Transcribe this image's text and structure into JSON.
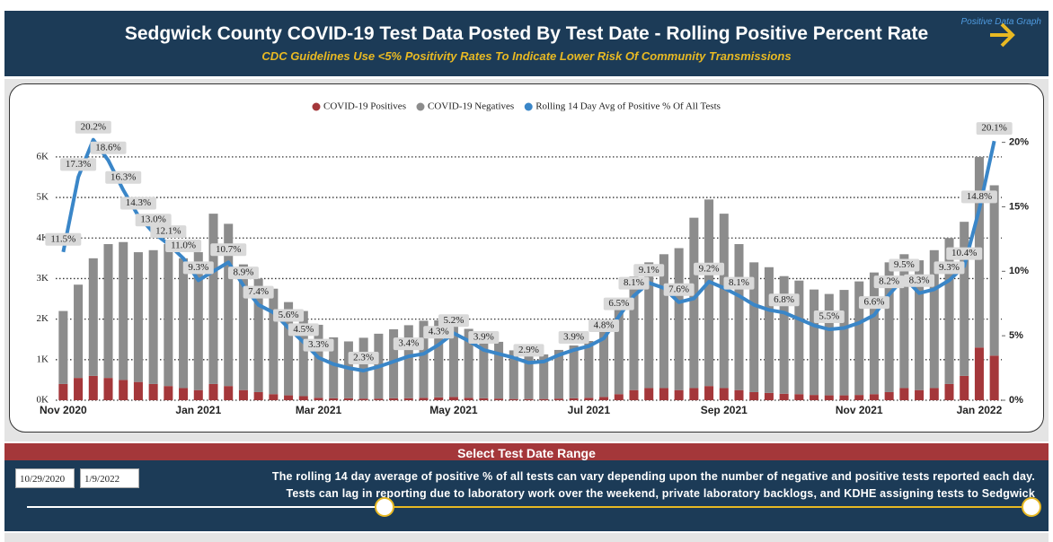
{
  "header": {
    "link": "Positive Data Graph",
    "title": "Sedgwick County COVID-19 Test Data Posted By Test Date - Rolling Positive Percent Rate",
    "subtitle": "CDC Guidelines Use <5% Positivity Rates To Indicate Lower Risk Of Community Transmissions"
  },
  "chart_data": {
    "type": "bar",
    "stacked": true,
    "grid": true,
    "legend": "top",
    "categories": [
      "Nov 2020",
      null,
      null,
      null,
      null,
      null,
      null,
      null,
      null,
      "Jan 2021",
      null,
      null,
      null,
      null,
      null,
      null,
      null,
      "Mar 2021",
      null,
      null,
      null,
      null,
      null,
      null,
      null,
      null,
      "May 2021",
      null,
      null,
      null,
      null,
      null,
      null,
      null,
      null,
      "Jul 2021",
      null,
      null,
      null,
      null,
      null,
      null,
      null,
      null,
      "Sep 2021",
      null,
      null,
      null,
      null,
      null,
      null,
      null,
      null,
      "Nov 2021",
      null,
      null,
      null,
      null,
      null,
      null,
      null,
      "Jan 2022",
      null
    ],
    "series": [
      {
        "name": "COVID-19 Positives",
        "color": "#a4373a",
        "type": "bar",
        "values": [
          400,
          550,
          600,
          550,
          500,
          450,
          400,
          350,
          300,
          250,
          400,
          350,
          250,
          200,
          150,
          120,
          100,
          60,
          50,
          50,
          40,
          40,
          50,
          50,
          60,
          70,
          80,
          60,
          50,
          40,
          30,
          30,
          30,
          40,
          50,
          60,
          80,
          150,
          250,
          300,
          300,
          250,
          300,
          350,
          300,
          250,
          200,
          180,
          160,
          150,
          130,
          120,
          120,
          130,
          150,
          200,
          300,
          250,
          300,
          400,
          600,
          1300,
          1100
        ]
      },
      {
        "name": "COVID-19 Negatives",
        "color": "#8c8c8c",
        "type": "bar",
        "values": [
          1800,
          2300,
          2900,
          3300,
          3400,
          3200,
          3300,
          3500,
          3200,
          3400,
          4200,
          4000,
          3100,
          2800,
          2600,
          2300,
          2100,
          1800,
          1500,
          1400,
          1500,
          1600,
          1700,
          1800,
          1900,
          1900,
          1950,
          1700,
          1600,
          1400,
          1200,
          1100,
          1100,
          1200,
          1300,
          1400,
          1700,
          2100,
          2800,
          3100,
          3300,
          3500,
          4200,
          4600,
          4300,
          3600,
          3200,
          3100,
          2900,
          2800,
          2600,
          2500,
          2600,
          2800,
          3000,
          3200,
          3300,
          3200,
          3400,
          3600,
          3800,
          4700,
          4200
        ]
      },
      {
        "name": "Rolling 14 Day Avg of Positive % Of All Tests",
        "color": "#3a86c8",
        "type": "line",
        "axis": "y2",
        "values": [
          11.5,
          17.3,
          20.2,
          18.6,
          16.3,
          14.3,
          13.0,
          12.1,
          11.0,
          9.3,
          10.0,
          10.7,
          8.9,
          7.4,
          6.8,
          5.6,
          4.5,
          3.3,
          2.8,
          2.5,
          2.3,
          2.6,
          3.0,
          3.4,
          3.6,
          4.3,
          5.2,
          4.6,
          3.9,
          3.6,
          3.3,
          2.9,
          3.0,
          3.5,
          3.9,
          4.2,
          4.8,
          6.5,
          8.1,
          9.1,
          8.7,
          7.6,
          7.9,
          9.2,
          8.7,
          8.1,
          7.4,
          7.0,
          6.8,
          6.3,
          5.8,
          5.5,
          5.6,
          6.0,
          6.6,
          8.2,
          9.5,
          8.3,
          8.6,
          9.3,
          10.4,
          14.8,
          20.1
        ],
        "value_labels": [
          "11.5%",
          "17.3%",
          "20.2%",
          "18.6%",
          "16.3%",
          "14.3%",
          "13.0%",
          "12.1%",
          "11.0%",
          "9.3%",
          null,
          "10.7%",
          "8.9%",
          "7.4%",
          null,
          "5.6%",
          "4.5%",
          "3.3%",
          null,
          null,
          "2.3%",
          null,
          null,
          "3.4%",
          null,
          "4.3%",
          "5.2%",
          null,
          "3.9%",
          null,
          null,
          "2.9%",
          null,
          null,
          "3.9%",
          null,
          "4.8%",
          "6.5%",
          "8.1%",
          "9.1%",
          null,
          "7.6%",
          null,
          "9.2%",
          null,
          "8.1%",
          null,
          null,
          "6.8%",
          null,
          null,
          "5.5%",
          null,
          null,
          "6.6%",
          "8.2%",
          "9.5%",
          "8.3%",
          null,
          "9.3%",
          "10.4%",
          "14.8%",
          "20.1%"
        ]
      }
    ],
    "ylim": [
      0,
      6550
    ],
    "yticks": [
      {
        "value": 0,
        "label": "0K"
      },
      {
        "value": 1000,
        "label": "1K"
      },
      {
        "value": 2000,
        "label": "2K"
      },
      {
        "value": 3000,
        "label": "3K"
      },
      {
        "value": 4000,
        "label": "4K"
      },
      {
        "value": 5000,
        "label": "5K"
      },
      {
        "value": 6000,
        "label": "6K"
      }
    ],
    "y2lim": [
      0,
      20.6
    ],
    "y2ticks": [
      {
        "value": 0,
        "label": "0%"
      },
      {
        "value": 5,
        "label": "5%"
      },
      {
        "value": 10,
        "label": "10%"
      },
      {
        "value": 15,
        "label": "15%"
      },
      {
        "value": 20,
        "label": "20%"
      }
    ]
  },
  "controls": {
    "range_label": "Select Test Date Range",
    "start_date": "10/29/2020",
    "end_date": "1/9/2022",
    "note": [
      "The rolling 14 day average of positive % of all tests can vary depending upon the number of negative and positive tests reported each day.",
      "Tests can lag in reporting due to laboratory work over the weekend, private laboratory backlogs, and KDHE assigning tests to Sedgwick"
    ]
  }
}
